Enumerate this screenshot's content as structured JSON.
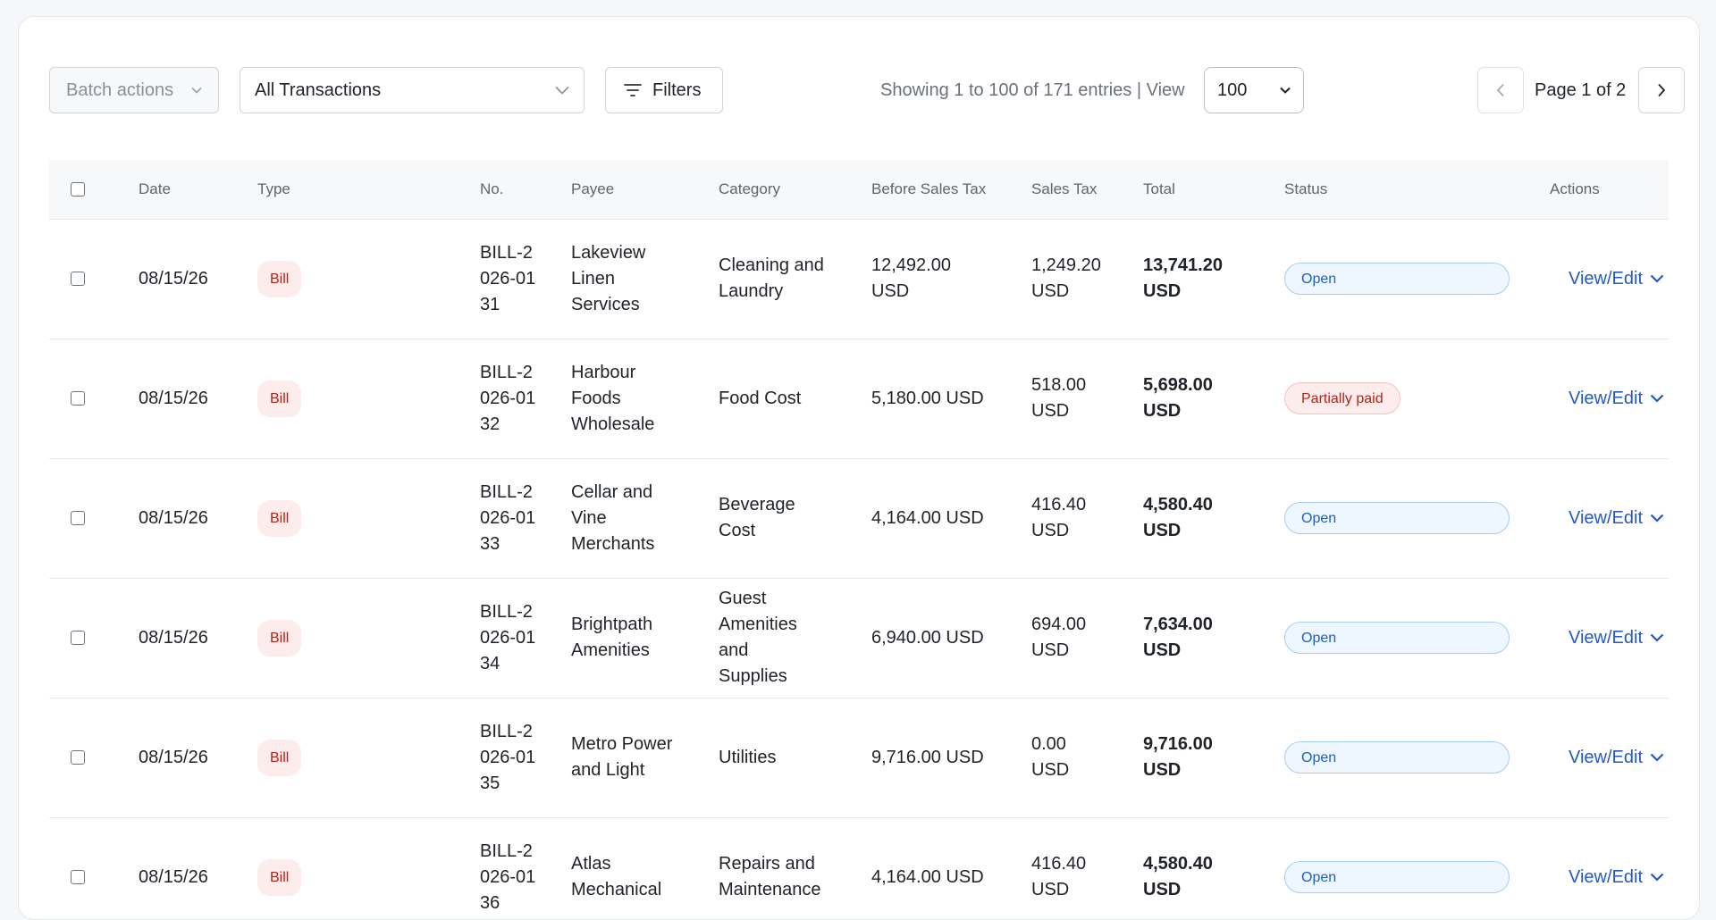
{
  "toolbar": {
    "batch_actions": "Batch actions",
    "transaction_filter": "All Transactions",
    "filters": "Filters",
    "showing": "Showing 1 to 100 of 171 entries | View",
    "per_page": "100",
    "page": "Page 1 of 2"
  },
  "columns": {
    "date": "Date",
    "type": "Type",
    "no": "No.",
    "payee": "Payee",
    "category": "Category",
    "before_tax": "Before Sales Tax",
    "sales_tax": "Sales Tax",
    "total": "Total",
    "status": "Status",
    "actions": "Actions"
  },
  "rows": [
    {
      "date": "08/15/26",
      "type": "Bill",
      "no": "BILL-2026-0131",
      "payee": "Lakeview Linen Services",
      "category": "Cleaning and Laundry",
      "before_tax": "12,492.00 USD",
      "sales_tax": "1,249.20 USD",
      "total": "13,741.20 USD",
      "status": "Open",
      "action": "View/Edit"
    },
    {
      "date": "08/15/26",
      "type": "Bill",
      "no": "BILL-2026-0132",
      "payee": "Harbour Foods Wholesale",
      "category": "Food Cost",
      "before_tax": "5,180.00 USD",
      "sales_tax": "518.00 USD",
      "total": "5,698.00 USD",
      "status": "Partially paid",
      "action": "View/Edit"
    },
    {
      "date": "08/15/26",
      "type": "Bill",
      "no": "BILL-2026-0133",
      "payee": "Cellar and Vine Merchants",
      "category": "Beverage Cost",
      "before_tax": "4,164.00 USD",
      "sales_tax": "416.40 USD",
      "total": "4,580.40 USD",
      "status": "Open",
      "action": "View/Edit"
    },
    {
      "date": "08/15/26",
      "type": "Bill",
      "no": "BILL-2026-0134",
      "payee": "Brightpath Amenities",
      "category": "Guest Amenities and Supplies",
      "before_tax": "6,940.00 USD",
      "sales_tax": "694.00 USD",
      "total": "7,634.00 USD",
      "status": "Open",
      "action": "View/Edit"
    },
    {
      "date": "08/15/26",
      "type": "Bill",
      "no": "BILL-2026-0135",
      "payee": "Metro Power and Light",
      "category": "Utilities",
      "before_tax": "9,716.00 USD",
      "sales_tax": "0.00 USD",
      "total": "9,716.00 USD",
      "status": "Open",
      "action": "View/Edit"
    },
    {
      "date": "08/15/26",
      "type": "Bill",
      "no": "BILL-2026-0136",
      "payee": "Atlas Mechanical",
      "category": "Repairs and Maintenance",
      "before_tax": "4,164.00 USD",
      "sales_tax": "416.40 USD",
      "total": "4,580.40 USD",
      "status": "Open",
      "action": "View/Edit"
    }
  ]
}
